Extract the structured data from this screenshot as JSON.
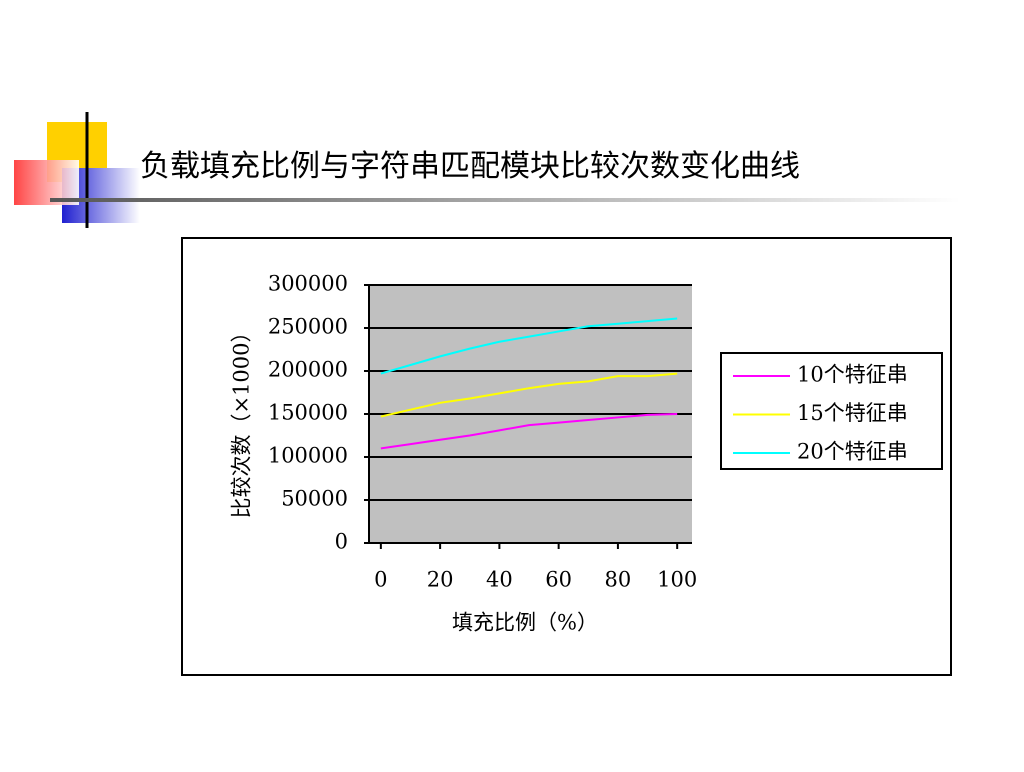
{
  "chart_data": {
    "type": "line",
    "title": "负载填充比例与字符串匹配模块比较次数变化曲线",
    "x_label": "填充比例（%）",
    "y_label": "比较次数（×1000）",
    "x": [
      0,
      10,
      20,
      30,
      40,
      50,
      60,
      70,
      80,
      90,
      100
    ],
    "series": [
      {
        "name": "10个特征串",
        "color": "#ff00ff",
        "values": [
          110000,
          115000,
          120000,
          125000,
          131000,
          137000,
          140000,
          143000,
          146000,
          149000,
          150000
        ]
      },
      {
        "name": "15个特征串",
        "color": "#ffff00",
        "values": [
          147000,
          155000,
          163000,
          168000,
          174000,
          180000,
          185000,
          188000,
          194000,
          194000,
          197000
        ]
      },
      {
        "name": "20个特征串",
        "color": "#00ffff",
        "values": [
          197000,
          207000,
          217000,
          226000,
          234000,
          240000,
          246000,
          252000,
          255000,
          258000,
          261000
        ]
      }
    ],
    "xlim": [
      -4,
      105
    ],
    "xticks": [
      0,
      20,
      40,
      60,
      80,
      100
    ],
    "ylim": [
      0,
      300000
    ],
    "yticks": [
      0,
      50000,
      100000,
      150000,
      200000,
      250000,
      300000
    ],
    "grid": true,
    "legend": "right"
  }
}
